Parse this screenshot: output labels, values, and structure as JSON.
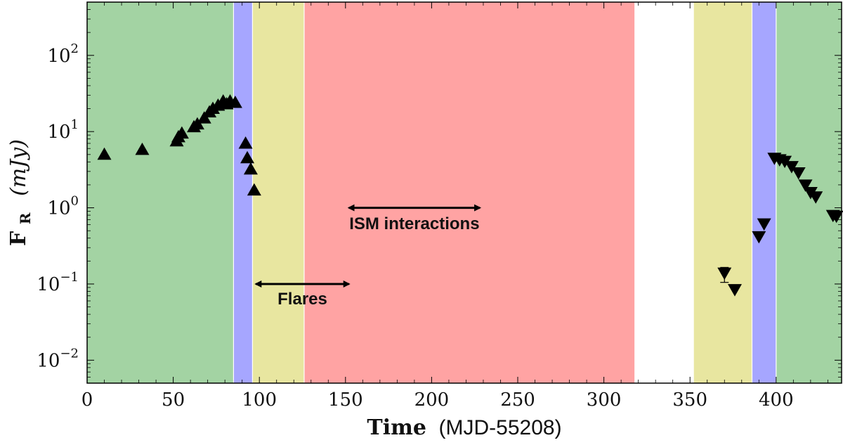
{
  "chart_data": {
    "type": "scatter",
    "xlabel_bold": "Time",
    "xlabel_rest": "(MJD-55208)",
    "ylabel_main": "F",
    "ylabel_sub": "R",
    "ylabel_unit": "(mJy)",
    "xlim": [
      0,
      438
    ],
    "ylim": [
      0.005,
      500
    ],
    "yscale": "log",
    "x_ticks": [
      0,
      50,
      100,
      150,
      200,
      250,
      300,
      350,
      400
    ],
    "y_ticks": [
      {
        "value": 0.01,
        "base": "10",
        "exp": "−2"
      },
      {
        "value": 0.1,
        "base": "10",
        "exp": "−1"
      },
      {
        "value": 1,
        "base": "10",
        "exp": "0"
      },
      {
        "value": 10,
        "base": "10",
        "exp": "1"
      },
      {
        "value": 100,
        "base": "10",
        "exp": "2"
      }
    ],
    "bands": [
      {
        "x0": 0,
        "x1": 85,
        "color": "#a3d3a3"
      },
      {
        "x0": 85,
        "x1": 96,
        "color": "#a6a6ff"
      },
      {
        "x0": 96,
        "x1": 126,
        "color": "#e8e6a0"
      },
      {
        "x0": 126,
        "x1": 318,
        "color": "#ffa3a3"
      },
      {
        "x0": 318,
        "x1": 352,
        "color": "#ffffff"
      },
      {
        "x0": 352,
        "x1": 386,
        "color": "#e8e6a0"
      },
      {
        "x0": 386,
        "x1": 400,
        "color": "#a6a6ff"
      },
      {
        "x0": 400,
        "x1": 438,
        "color": "#a3d3a3"
      }
    ],
    "series": [
      {
        "marker": "triangle-up",
        "x": [
          10,
          32,
          52,
          53,
          55,
          62,
          64,
          68,
          71,
          73,
          76,
          79,
          81,
          83,
          86,
          92,
          93,
          95,
          97
        ],
        "y": [
          5.0,
          5.8,
          7.5,
          8.5,
          9.5,
          11.5,
          12.5,
          15.0,
          18.0,
          20.0,
          22.0,
          25.0,
          23.0,
          25.0,
          24.0,
          7.0,
          4.5,
          3.2,
          1.7
        ]
      },
      {
        "marker": "triangle-down",
        "x": [
          370,
          376,
          390,
          393,
          399,
          402,
          405,
          409,
          413,
          417,
          420,
          423,
          433,
          435
        ],
        "y": [
          0.14,
          0.085,
          0.42,
          0.62,
          4.5,
          4.3,
          4.1,
          3.5,
          2.9,
          2.0,
          1.6,
          1.4,
          0.8,
          0.78
        ]
      }
    ],
    "error_bars": [
      {
        "x": 370,
        "low": 0.105,
        "high": 0.165
      }
    ],
    "annotations": [
      {
        "text": "Flares",
        "arrow_x": [
          98,
          152
        ],
        "arrow_y": 0.1,
        "text_x": 125,
        "text_y": 0.064
      },
      {
        "text": "ISM interactions",
        "arrow_x": [
          152,
          228
        ],
        "arrow_y": 1.0,
        "text_x": 190,
        "text_y": 0.62
      }
    ]
  }
}
